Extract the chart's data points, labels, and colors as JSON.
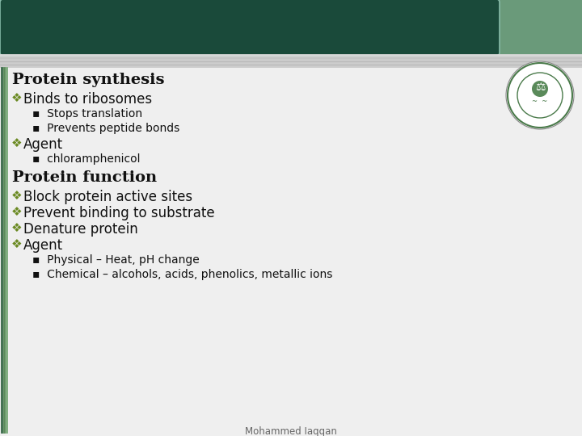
{
  "bg_color": "#efefef",
  "header_box_color": "#1a4a3a",
  "header_box_color2": "#6a9a7a",
  "title1": "Protein synthesis",
  "title2": "Protein function",
  "bullet1_items": [
    "Binds to ribosomes",
    "Agent"
  ],
  "sub1_items": [
    [
      "Stops translation",
      "Prevents peptide bonds"
    ],
    [
      "chloramphenicol"
    ]
  ],
  "bullet2_items": [
    "Block protein active sites",
    "Prevent binding to substrate",
    "Denature protein",
    "Agent"
  ],
  "sub2_items": [
    [],
    [],
    [],
    [
      "Physical – Heat, pH change",
      "Chemical – alcohols, acids, phenolics, metallic ions"
    ]
  ],
  "footer": "Mohammed Iaqqan",
  "text_color": "#111111",
  "bullet_color": "#6b8a23",
  "sub_bullet_color": "#4a7050",
  "title_color": "#111111"
}
